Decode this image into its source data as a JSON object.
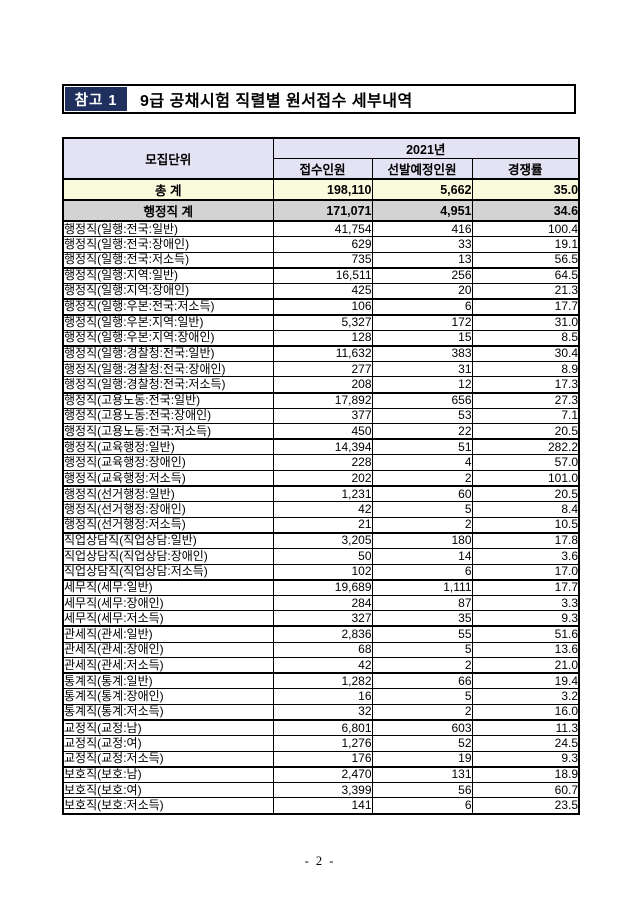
{
  "header": {
    "badge": "참고 1",
    "title": "9급 공채시험 직렬별 원서접수 세부내역"
  },
  "table": {
    "headers": {
      "unit": "모집단위",
      "year": "2021년",
      "applicants": "접수인원",
      "planned": "선발예정인원",
      "ratio": "경쟁률"
    },
    "total_row": {
      "label": "총 계",
      "applicants": "198,110",
      "planned": "5,662",
      "ratio": "35.0"
    },
    "subtotal_row": {
      "label": "행정직 계",
      "applicants": "171,071",
      "planned": "4,951",
      "ratio": "34.6"
    },
    "sections": [
      {
        "rows": [
          {
            "label": "행정직(일행:전국:일반)",
            "applicants": "41,754",
            "planned": "416",
            "ratio": "100.4"
          },
          {
            "label": "행정직(일행:전국:장애인)",
            "applicants": "629",
            "planned": "33",
            "ratio": "19.1"
          },
          {
            "label": "행정직(일행:전국:저소득)",
            "applicants": "735",
            "planned": "13",
            "ratio": "56.5"
          }
        ]
      },
      {
        "rows": [
          {
            "label": "행정직(일행:지역:일반)",
            "applicants": "16,511",
            "planned": "256",
            "ratio": "64.5"
          },
          {
            "label": "행정직(일행:지역:장애인)",
            "applicants": "425",
            "planned": "20",
            "ratio": "21.3"
          }
        ]
      },
      {
        "rows": [
          {
            "label": "행정직(일행:우본:전국:저소득)",
            "applicants": "106",
            "planned": "6",
            "ratio": "17.7"
          }
        ]
      },
      {
        "rows": [
          {
            "label": "행정직(일행:우본:지역:일반)",
            "applicants": "5,327",
            "planned": "172",
            "ratio": "31.0"
          },
          {
            "label": "행정직(일행:우본:지역:장애인)",
            "applicants": "128",
            "planned": "15",
            "ratio": "8.5"
          }
        ]
      },
      {
        "rows": [
          {
            "label": "행정직(일행:경찰청:전국:일반)",
            "applicants": "11,632",
            "planned": "383",
            "ratio": "30.4"
          },
          {
            "label": "행정직(일행:경찰청:전국:장애인)",
            "applicants": "277",
            "planned": "31",
            "ratio": "8.9"
          },
          {
            "label": "행정직(일행:경찰청:전국:저소득)",
            "applicants": "208",
            "planned": "12",
            "ratio": "17.3"
          }
        ]
      },
      {
        "rows": [
          {
            "label": "행정직(고용노동:전국:일반)",
            "applicants": "17,892",
            "planned": "656",
            "ratio": "27.3"
          },
          {
            "label": "행정직(고용노동:전국:장애인)",
            "applicants": "377",
            "planned": "53",
            "ratio": "7.1"
          },
          {
            "label": "행정직(고용노동:전국:저소득)",
            "applicants": "450",
            "planned": "22",
            "ratio": "20.5"
          }
        ]
      },
      {
        "rows": [
          {
            "label": "행정직(교육행정:일반)",
            "applicants": "14,394",
            "planned": "51",
            "ratio": "282.2"
          },
          {
            "label": "행정직(교육행정:장애인)",
            "applicants": "228",
            "planned": "4",
            "ratio": "57.0"
          },
          {
            "label": "행정직(교육행정:저소득)",
            "applicants": "202",
            "planned": "2",
            "ratio": "101.0"
          }
        ]
      },
      {
        "rows": [
          {
            "label": "행정직(선거행정:일반)",
            "applicants": "1,231",
            "planned": "60",
            "ratio": "20.5"
          },
          {
            "label": "행정직(선거행정:장애인)",
            "applicants": "42",
            "planned": "5",
            "ratio": "8.4"
          },
          {
            "label": "행정직(선거행정:저소득)",
            "applicants": "21",
            "planned": "2",
            "ratio": "10.5"
          }
        ]
      },
      {
        "rows": [
          {
            "label": "직업상담직(직업상담:일반)",
            "applicants": "3,205",
            "planned": "180",
            "ratio": "17.8"
          },
          {
            "label": "직업상담직(직업상담:장애인)",
            "applicants": "50",
            "planned": "14",
            "ratio": "3.6"
          },
          {
            "label": "직업상담직(직업상담:저소득)",
            "applicants": "102",
            "planned": "6",
            "ratio": "17.0"
          }
        ]
      },
      {
        "rows": [
          {
            "label": "세무직(세무:일반)",
            "applicants": "19,689",
            "planned": "1,111",
            "ratio": "17.7"
          },
          {
            "label": "세무직(세무:장애인)",
            "applicants": "284",
            "planned": "87",
            "ratio": "3.3"
          },
          {
            "label": "세무직(세무:저소득)",
            "applicants": "327",
            "planned": "35",
            "ratio": "9.3"
          }
        ]
      },
      {
        "rows": [
          {
            "label": "관세직(관세:일반)",
            "applicants": "2,836",
            "planned": "55",
            "ratio": "51.6"
          },
          {
            "label": "관세직(관세:장애인)",
            "applicants": "68",
            "planned": "5",
            "ratio": "13.6"
          },
          {
            "label": "관세직(관세:저소득)",
            "applicants": "42",
            "planned": "2",
            "ratio": "21.0"
          }
        ]
      },
      {
        "rows": [
          {
            "label": "통계직(통계:일반)",
            "applicants": "1,282",
            "planned": "66",
            "ratio": "19.4"
          },
          {
            "label": "통계직(통계:장애인)",
            "applicants": "16",
            "planned": "5",
            "ratio": "3.2"
          },
          {
            "label": "통계직(통계:저소득)",
            "applicants": "32",
            "planned": "2",
            "ratio": "16.0"
          }
        ]
      },
      {
        "rows": [
          {
            "label": "교정직(교정:남)",
            "applicants": "6,801",
            "planned": "603",
            "ratio": "11.3"
          },
          {
            "label": "교정직(교정:여)",
            "applicants": "1,276",
            "planned": "52",
            "ratio": "24.5"
          },
          {
            "label": "교정직(교정:저소득)",
            "applicants": "176",
            "planned": "19",
            "ratio": "9.3"
          }
        ]
      },
      {
        "rows": [
          {
            "label": "보호직(보호:남)",
            "applicants": "2,470",
            "planned": "131",
            "ratio": "18.9"
          },
          {
            "label": "보호직(보호:여)",
            "applicants": "3,399",
            "planned": "56",
            "ratio": "60.7"
          },
          {
            "label": "보호직(보호:저소득)",
            "applicants": "141",
            "planned": "6",
            "ratio": "23.5"
          }
        ]
      }
    ]
  },
  "footer": {
    "page_number": "- 2 -"
  },
  "colors": {
    "accent_navy": "#20305e",
    "header_row_bg": "#e3e3f3",
    "total_row_bg": "#fafadc",
    "subtotal_row_bg": "#d3d3d3",
    "border": "#000000"
  }
}
